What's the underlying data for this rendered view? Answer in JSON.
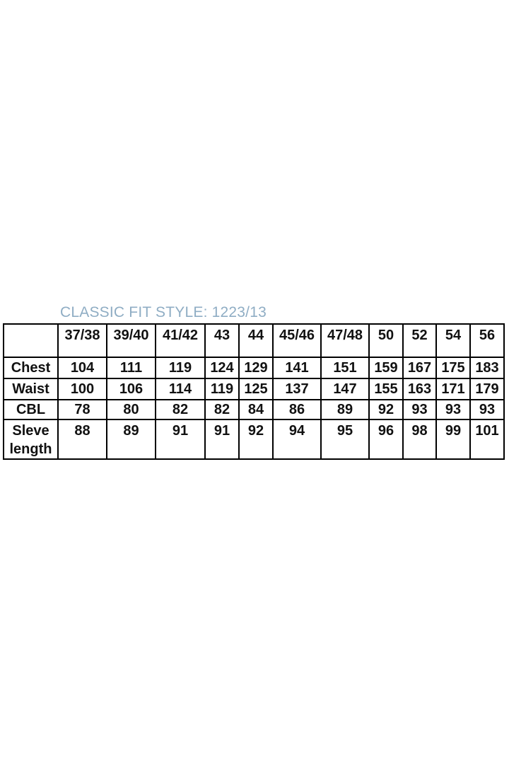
{
  "title": {
    "text": "CLASSIC FIT STYLE: 1223/13",
    "color": "#8fadc4"
  },
  "chart_data": {
    "type": "table",
    "title": "CLASSIC FIT STYLE: 1223/13",
    "columns": [
      "",
      "37/38",
      "39/40",
      "41/42",
      "43",
      "44",
      "45/46",
      "47/48",
      "50",
      "52",
      "54",
      "56"
    ],
    "rows": [
      {
        "label": "Chest",
        "values": [
          104,
          111,
          119,
          124,
          129,
          141,
          151,
          159,
          167,
          175,
          183
        ]
      },
      {
        "label": "Waist",
        "values": [
          100,
          106,
          114,
          119,
          125,
          137,
          147,
          155,
          163,
          171,
          179
        ]
      },
      {
        "label": "CBL",
        "values": [
          78,
          80,
          82,
          82,
          84,
          86,
          89,
          92,
          93,
          93,
          93
        ]
      },
      {
        "label": "Sleve length",
        "values": [
          88,
          89,
          91,
          91,
          92,
          94,
          95,
          96,
          98,
          99,
          101
        ]
      }
    ],
    "layout": {
      "background": "#ffffff",
      "border_color": "#000000",
      "title_color": "#8fadc4"
    }
  }
}
